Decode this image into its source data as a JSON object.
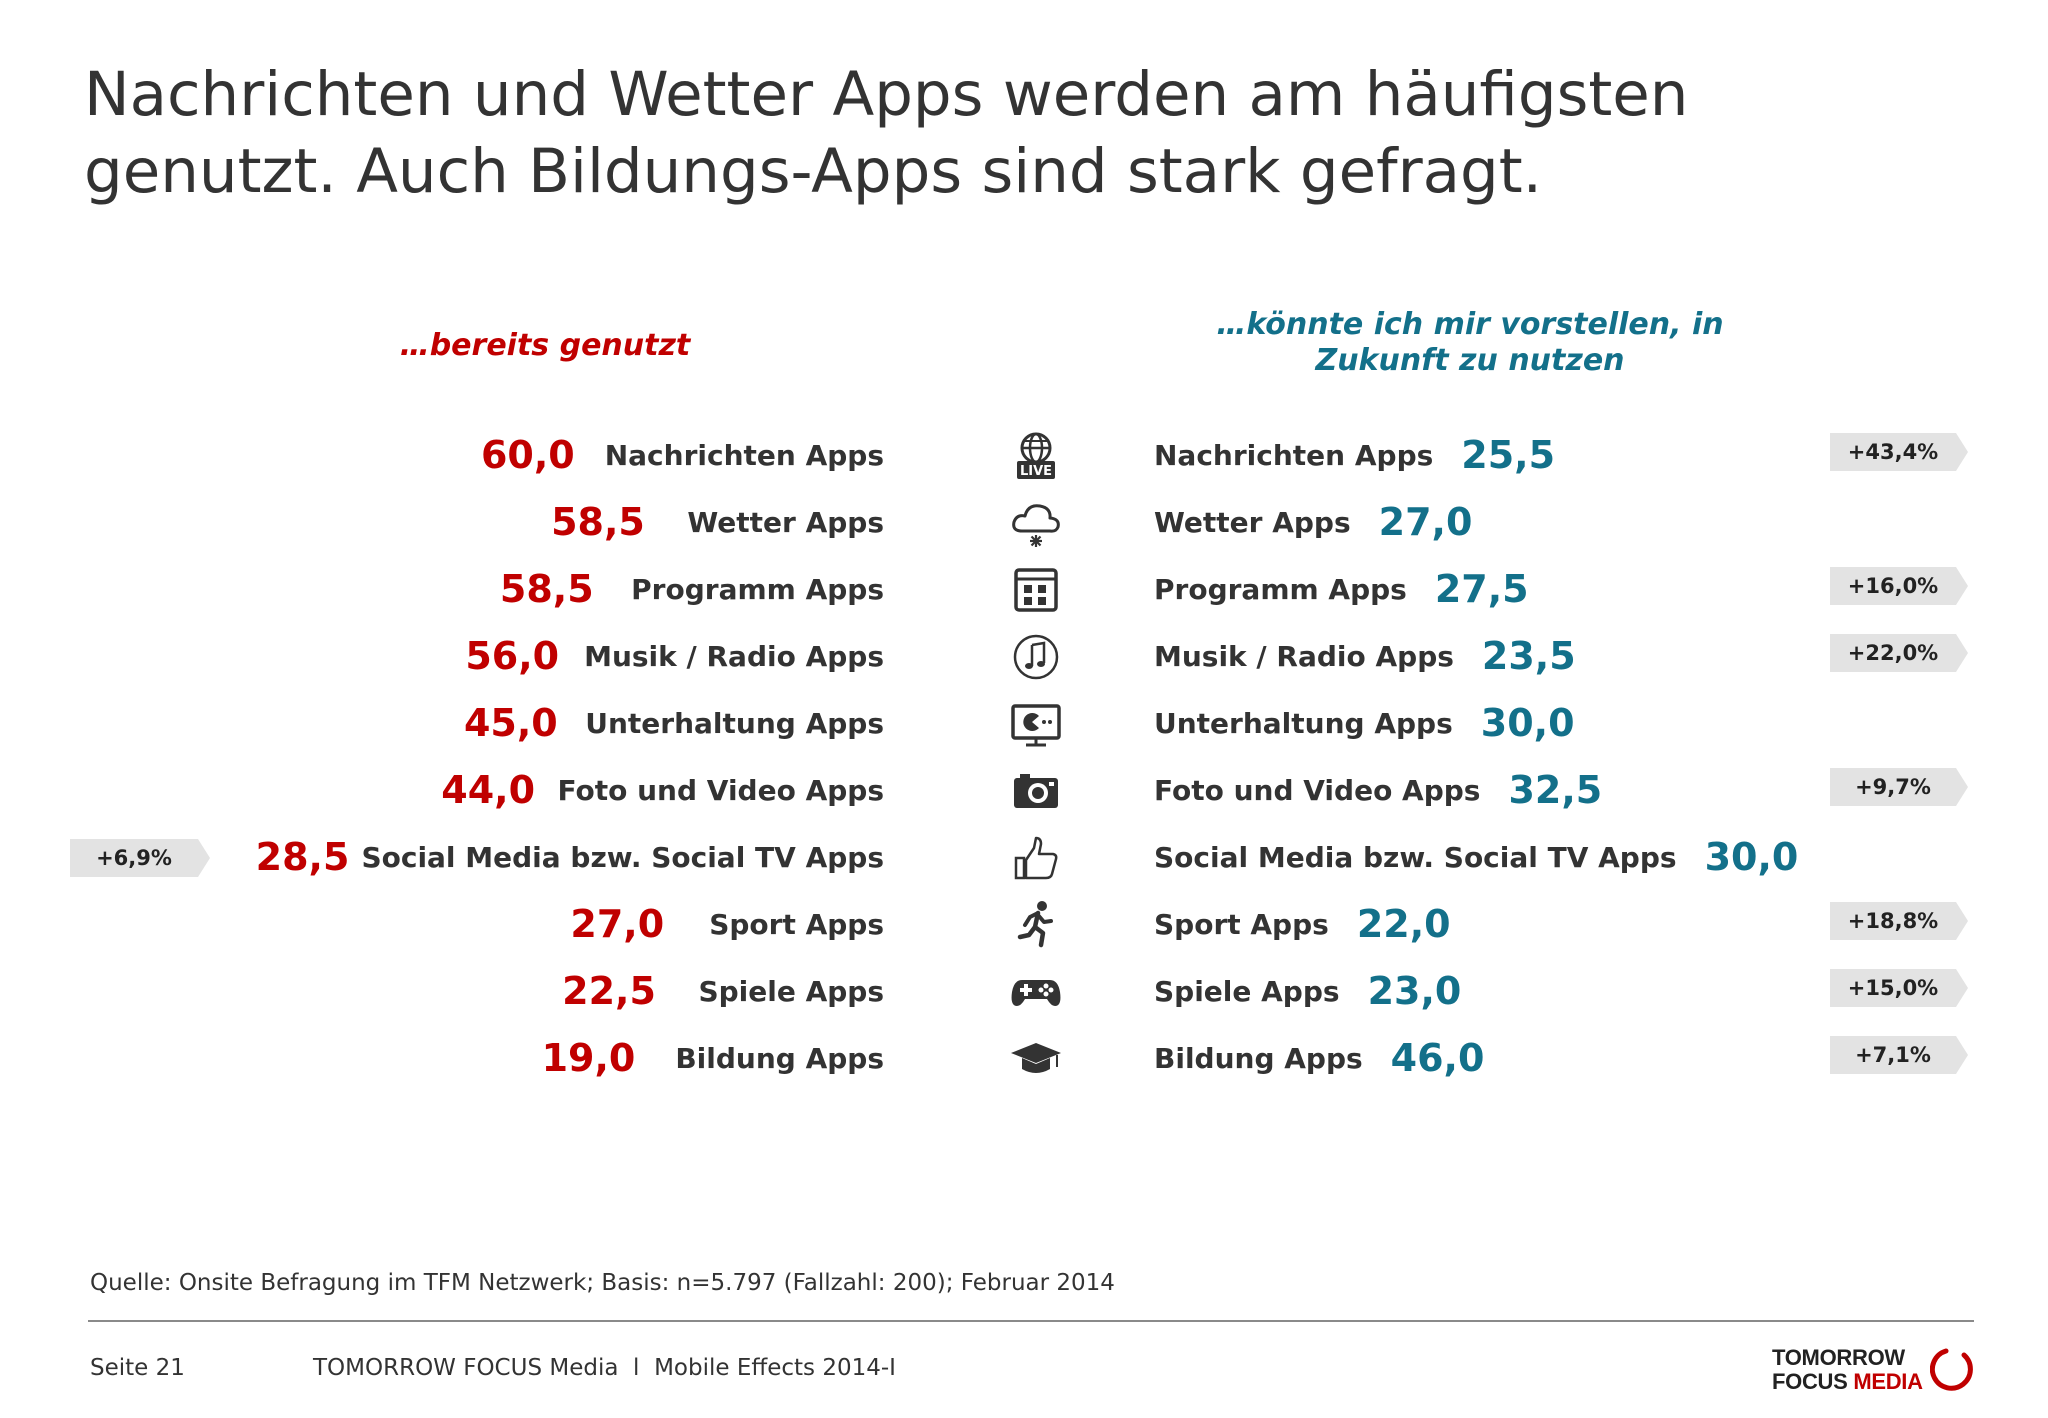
{
  "title": "Nachrichten und Wetter Apps werden am häufigsten genutzt. Auch Bildungs-Apps sind stark gefragt.",
  "colors": {
    "left": "#c00000",
    "right": "#13708a",
    "badge": "#e3e3e3"
  },
  "chart_data": {
    "type": "table",
    "left_header": "…bereits genutzt",
    "right_header": "…könnte ich mir vorstellen, in Zukunft zu nutzen",
    "rows": [
      {
        "category": "Nachrichten Apps",
        "used": "60,0",
        "future": "25,5",
        "icon": "globe-live-icon",
        "badge_right": "+43,4%",
        "badge_left": ""
      },
      {
        "category": "Wetter Apps",
        "used": "58,5",
        "future": "27,0",
        "icon": "cloud-icon",
        "badge_right": "",
        "badge_left": ""
      },
      {
        "category": "Programm Apps",
        "used": "58,5",
        "future": "27,5",
        "icon": "calendar-icon",
        "badge_right": "+16,0%",
        "badge_left": ""
      },
      {
        "category": "Musik / Radio Apps",
        "used": "56,0",
        "future": "23,5",
        "icon": "music-note-icon",
        "badge_right": "+22,0%",
        "badge_left": ""
      },
      {
        "category": "Unterhaltung Apps",
        "used": "45,0",
        "future": "30,0",
        "icon": "tv-pacman-icon",
        "badge_right": "",
        "badge_left": ""
      },
      {
        "category": "Foto und Video Apps",
        "used": "44,0",
        "future": "32,5",
        "icon": "camera-icon",
        "badge_right": "+9,7%",
        "badge_left": ""
      },
      {
        "category": "Social Media bzw. Social TV Apps",
        "used": "28,5",
        "future": "30,0",
        "icon": "thumbs-up-icon",
        "badge_right": "",
        "badge_left": "+6,9%"
      },
      {
        "category": "Sport Apps",
        "used": "27,0",
        "future": "22,0",
        "icon": "runner-icon",
        "badge_right": "+18,8%",
        "badge_left": ""
      },
      {
        "category": "Spiele Apps",
        "used": "22,5",
        "future": "23,0",
        "icon": "gamepad-icon",
        "badge_right": "+15,0%",
        "badge_left": ""
      },
      {
        "category": "Bildung Apps",
        "used": "19,0",
        "future": "46,0",
        "icon": "graduation-cap-icon",
        "badge_right": "+7,1%",
        "badge_left": ""
      }
    ]
  },
  "source": "Quelle: Onsite Befragung im TFM Netzwerk; Basis: n=5.797 (Fallzahl: 200); Februar 2014",
  "footer": {
    "page": "Seite 21",
    "publication": "TOMORROW FOCUS Media  l  Mobile Effects 2014-I",
    "logo_line1": "TOMORROW",
    "logo_line2a": "FOCUS ",
    "logo_line2b": "MEDIA"
  }
}
